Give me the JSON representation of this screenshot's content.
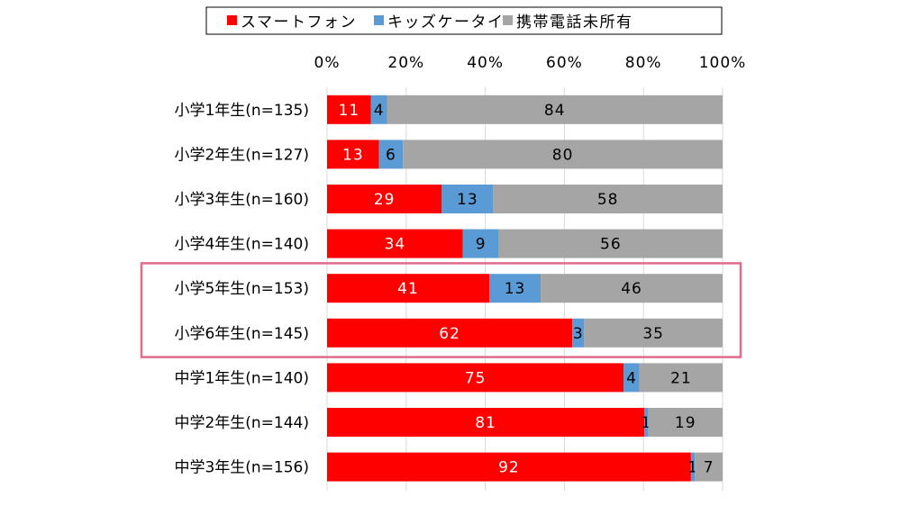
{
  "chart_data": {
    "type": "bar",
    "orientation": "horizontal",
    "stacked": "percent",
    "categories": [
      "小学1年生(n=135)",
      "小学2年生(n=127)",
      "小学3年生(n=160)",
      "小学4年生(n=140)",
      "小学5年生(n=153)",
      "小学6年生(n=145)",
      "中学1年生(n=140)",
      "中学2年生(n=144)",
      "中学3年生(n=156)"
    ],
    "series": [
      {
        "name": "スマートフォン",
        "color": "#ff0000",
        "label_color": "#ffffff",
        "values": [
          11,
          13,
          29,
          34,
          41,
          62,
          75,
          81,
          92
        ]
      },
      {
        "name": "キッズケータイ",
        "color": "#5b9bd5",
        "label_color": "#000000",
        "values": [
          4,
          6,
          13,
          9,
          13,
          3,
          4,
          1,
          1
        ]
      },
      {
        "name": "携帯電話未所有",
        "color": "#a5a5a5",
        "label_color": "#000000",
        "values": [
          84,
          80,
          58,
          56,
          46,
          35,
          21,
          19,
          7
        ]
      }
    ],
    "xlim": [
      0,
      100
    ],
    "xticks": [
      "0%",
      "20%",
      "40%",
      "60%",
      "80%",
      "100%"
    ],
    "xaxis_position": "top",
    "grid": true,
    "legend": "top",
    "highlight": {
      "categories": [
        "小学5年生(n=153)",
        "小学6年生(n=145)"
      ],
      "color": "#e06c8c"
    }
  }
}
